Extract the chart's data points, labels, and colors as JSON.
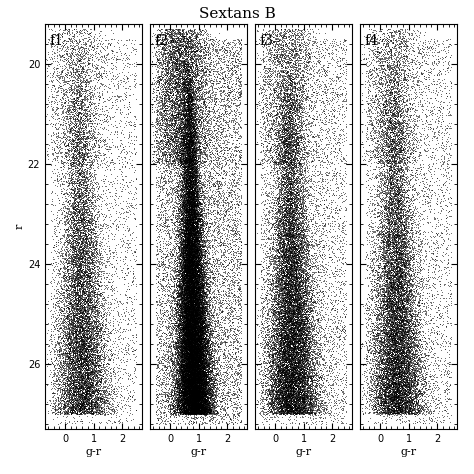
{
  "title": "Sextans B",
  "panels": [
    "f1",
    "f2",
    "f3",
    "f4"
  ],
  "xlim": [
    -0.7,
    2.7
  ],
  "ylim": [
    27.3,
    19.2
  ],
  "xticks": [
    0,
    1,
    2
  ],
  "yticks": [
    20,
    22,
    24,
    26
  ],
  "xlabel": "g-r",
  "ylabel": "r",
  "background_color": "#ffffff",
  "point_color": "black",
  "figsize": [
    4.74,
    4.74
  ],
  "dpi": 100,
  "title_fontsize": 11,
  "label_fontsize": 8,
  "tick_fontsize": 7,
  "panel_label_fontsize": 10
}
